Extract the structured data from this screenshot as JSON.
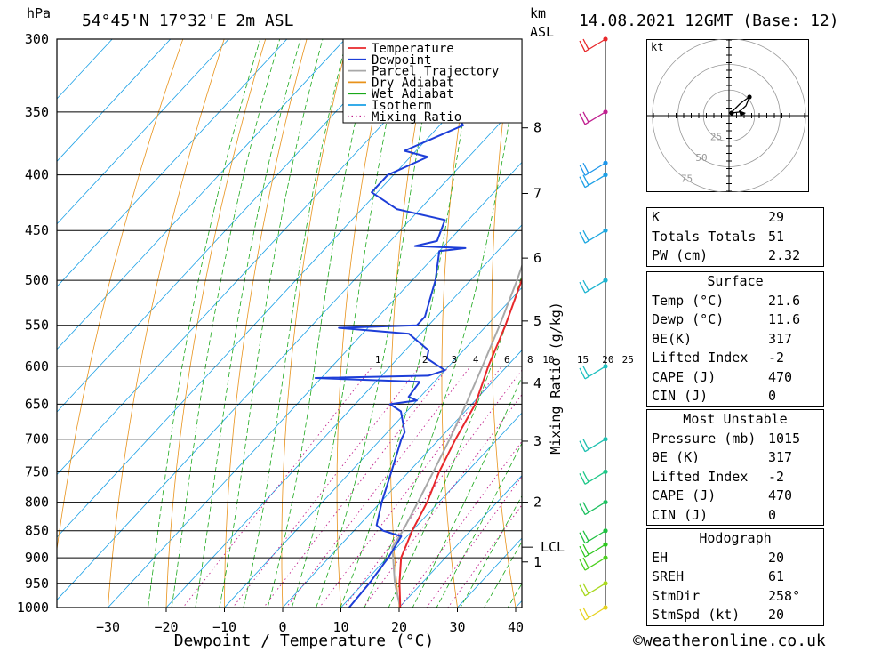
{
  "header": {
    "location": "54°45'N  17°32'E  2m  ASL",
    "datetime": "14.08.2021  12GMT  (Base: 12)",
    "pressure_unit": "hPa",
    "height_unit_top": "km",
    "height_unit_bottom": "ASL"
  },
  "footer": {
    "copyright": "©weatheronline.co.uk"
  },
  "legend": [
    {
      "label": "Temperature",
      "color": "#e8282b",
      "style": "solid"
    },
    {
      "label": "Dewpoint",
      "color": "#1d3ed8",
      "style": "solid"
    },
    {
      "label": "Parcel Trajectory",
      "color": "#a8a8a8",
      "style": "solid"
    },
    {
      "label": "Dry Adiabat",
      "color": "#e8921a",
      "style": "solid"
    },
    {
      "label": "Wet Adiabat",
      "color": "#1aa81a",
      "style": "solid"
    },
    {
      "label": "Isotherm",
      "color": "#1aa0e6",
      "style": "solid"
    },
    {
      "label": "Mixing Ratio",
      "color": "#c0208c",
      "style": "dotted"
    }
  ],
  "chart_data": {
    "type": "line",
    "subtype": "skew-t log-p",
    "xlabel": "Dewpoint / Temperature (°C)",
    "ylabel": "hPa",
    "x_ticks": [
      -30,
      -20,
      -10,
      0,
      10,
      20,
      30,
      40
    ],
    "pressure_levels": [
      300,
      350,
      400,
      450,
      500,
      550,
      600,
      650,
      700,
      750,
      800,
      850,
      900,
      950,
      1000
    ],
    "height_label": "km ASL",
    "height_ticks": [
      {
        "label": "1",
        "p": 908
      },
      {
        "label": "2",
        "p": 800
      },
      {
        "label": "3",
        "p": 703
      },
      {
        "label": "4",
        "p": 622
      },
      {
        "label": "5",
        "p": 545
      },
      {
        "label": "6",
        "p": 477
      },
      {
        "label": "7",
        "p": 416
      },
      {
        "label": "8",
        "p": 362
      }
    ],
    "lcl": {
      "label": "LCL",
      "p": 880
    },
    "mixing_ratio_label": "Mixing Ratio (g/kg)",
    "mixing_ratio_ticks": [
      "1",
      "2",
      "3",
      "4",
      "6",
      "8",
      "10",
      "15",
      "20",
      "25"
    ],
    "series": [
      {
        "name": "Temperature",
        "points": [
          [
            1015,
            21.6
          ],
          [
            1000,
            20.2
          ],
          [
            950,
            16.2
          ],
          [
            900,
            12.4
          ],
          [
            850,
            10.0
          ],
          [
            800,
            8.0
          ],
          [
            750,
            5.2
          ],
          [
            700,
            2.8
          ],
          [
            650,
            0.6
          ],
          [
            600,
            -3.2
          ],
          [
            550,
            -6.8
          ],
          [
            500,
            -11.2
          ],
          [
            450,
            -16.4
          ],
          [
            400,
            -22.6
          ],
          [
            370,
            -27.0
          ],
          [
            350,
            -29.0
          ],
          [
            300,
            -37.0
          ]
        ]
      },
      {
        "name": "Dewpoint",
        "points": [
          [
            1015,
            11.6
          ],
          [
            1000,
            11.4
          ],
          [
            950,
            11.0
          ],
          [
            900,
            10.2
          ],
          [
            860,
            9.0
          ],
          [
            850,
            5.0
          ],
          [
            840,
            3.0
          ],
          [
            800,
            0.2
          ],
          [
            750,
            -3.0
          ],
          [
            700,
            -6.5
          ],
          [
            690,
            -7.0
          ],
          [
            660,
            -11.0
          ],
          [
            650,
            -14.0
          ],
          [
            645,
            -10.0
          ],
          [
            640,
            -12.0
          ],
          [
            620,
            -12.5
          ],
          [
            615,
            -31.0
          ],
          [
            612,
            -12.0
          ],
          [
            605,
            -10.0
          ],
          [
            590,
            -15.0
          ],
          [
            580,
            -16.0
          ],
          [
            560,
            -22.0
          ],
          [
            553,
            -35.0
          ],
          [
            550,
            -22.0
          ],
          [
            540,
            -22.0
          ],
          [
            500,
            -26.0
          ],
          [
            470,
            -30.0
          ],
          [
            467,
            -26.0
          ],
          [
            465,
            -35.0
          ],
          [
            460,
            -32.0
          ],
          [
            440,
            -34.0
          ],
          [
            430,
            -44.0
          ],
          [
            415,
            -51.0
          ],
          [
            400,
            -51.0
          ],
          [
            385,
            -47.0
          ],
          [
            380,
            -52.0
          ],
          [
            360,
            -46.0
          ],
          [
            350,
            -50.0
          ],
          [
            330,
            -54.0
          ],
          [
            300,
            -58.0
          ]
        ]
      },
      {
        "name": "Parcel Trajectory",
        "points": [
          [
            1015,
            21.6
          ],
          [
            950,
            15.4
          ],
          [
            880,
            9.2
          ],
          [
            850,
            8.4
          ],
          [
            800,
            6.4
          ],
          [
            750,
            4.2
          ],
          [
            700,
            1.8
          ],
          [
            650,
            -1.0
          ],
          [
            600,
            -4.2
          ],
          [
            550,
            -7.8
          ],
          [
            500,
            -12.0
          ],
          [
            450,
            -17.0
          ],
          [
            400,
            -23.0
          ],
          [
            350,
            -30.0
          ],
          [
            300,
            -38.2
          ]
        ]
      }
    ]
  },
  "wind_barbs": [
    {
      "p": 1000,
      "color": "#e6d21e"
    },
    {
      "p": 950,
      "color": "#a8d81e"
    },
    {
      "p": 900,
      "color": "#4cd01e"
    },
    {
      "p": 875,
      "color": "#2ec81e"
    },
    {
      "p": 850,
      "color": "#1ec040"
    },
    {
      "p": 800,
      "color": "#1ec060"
    },
    {
      "p": 750,
      "color": "#1ec888"
    },
    {
      "p": 700,
      "color": "#1ec0b0"
    },
    {
      "p": 600,
      "color": "#1ec0c0"
    },
    {
      "p": 500,
      "color": "#1eb4d0"
    },
    {
      "p": 450,
      "color": "#1ea8e0"
    },
    {
      "p": 400,
      "color": "#1ea0e6"
    },
    {
      "p": 390,
      "color": "#1e96ea"
    },
    {
      "p": 350,
      "color": "#c02090"
    },
    {
      "p": 300,
      "color": "#e8282b"
    }
  ],
  "hodograph": {
    "unit": "kt",
    "ring_labels": [
      "25",
      "50",
      "75"
    ]
  },
  "indices": [
    {
      "label": "K",
      "value": "29"
    },
    {
      "label": "Totals Totals",
      "value": "51"
    },
    {
      "label": "PW (cm)",
      "value": "2.32"
    }
  ],
  "surface": {
    "title": "Surface",
    "rows": [
      {
        "label": "Temp (°C)",
        "value": "21.6"
      },
      {
        "label": "Dewp (°C)",
        "value": "11.6"
      },
      {
        "label": "θE(K)",
        "value": "317"
      },
      {
        "label": "Lifted Index",
        "value": "-2"
      },
      {
        "label": "CAPE (J)",
        "value": "470"
      },
      {
        "label": "CIN (J)",
        "value": "0"
      }
    ]
  },
  "most_unstable": {
    "title": "Most Unstable",
    "rows": [
      {
        "label": "Pressure (mb)",
        "value": "1015"
      },
      {
        "label": "θE (K)",
        "value": "317"
      },
      {
        "label": "Lifted Index",
        "value": "-2"
      },
      {
        "label": "CAPE (J)",
        "value": "470"
      },
      {
        "label": "CIN (J)",
        "value": "0"
      }
    ]
  },
  "hodograph_stats": {
    "title": "Hodograph",
    "rows": [
      {
        "label": "EH",
        "value": "20"
      },
      {
        "label": "SREH",
        "value": "61"
      },
      {
        "label": "StmDir",
        "value": "258°"
      },
      {
        "label": "StmSpd (kt)",
        "value": "20"
      }
    ]
  }
}
